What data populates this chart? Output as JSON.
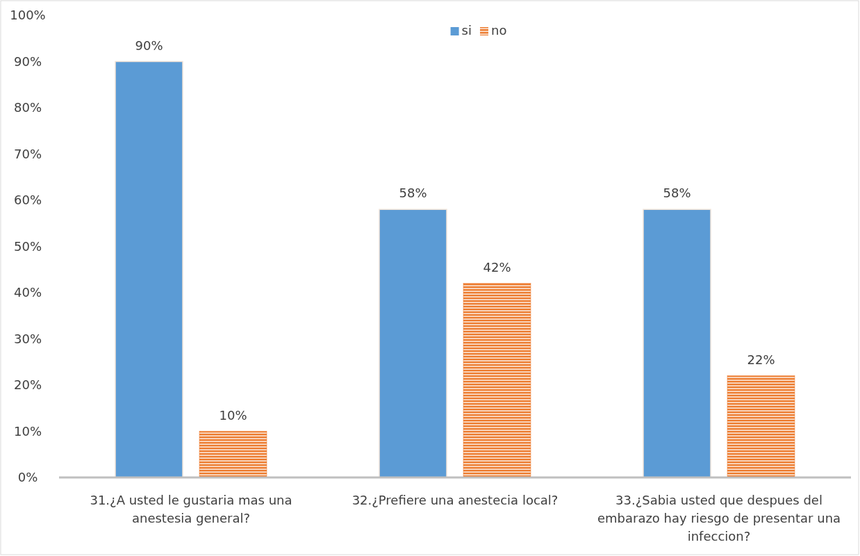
{
  "chart_data": {
    "type": "bar",
    "categories": [
      "31.¿A usted le gustaria mas una anestesia general?",
      "32.¿Prefiere una anestecia local?",
      "33.¿Sabia usted que despues del embarazo hay riesgo de presentar una infeccion?"
    ],
    "series": [
      {
        "name": "si",
        "color": "#5b9bd5",
        "values": [
          90,
          58,
          58
        ],
        "value_labels": [
          "90%",
          "58%",
          "58%"
        ]
      },
      {
        "name": "no",
        "color": "#ed7d31",
        "values": [
          10,
          42,
          22
        ],
        "value_labels": [
          "10%",
          "42%",
          "22%"
        ]
      }
    ],
    "ylim": [
      0,
      100
    ],
    "yticks": [
      {
        "value": 0,
        "label": "0%"
      },
      {
        "value": 10,
        "label": "10%"
      },
      {
        "value": 20,
        "label": "20%"
      },
      {
        "value": 30,
        "label": "30%"
      },
      {
        "value": 40,
        "label": "40%"
      },
      {
        "value": 50,
        "label": "50%"
      },
      {
        "value": 60,
        "label": "60%"
      },
      {
        "value": 70,
        "label": "70%"
      },
      {
        "value": 80,
        "label": "80%"
      },
      {
        "value": 90,
        "label": "90%"
      },
      {
        "value": 100,
        "label": "100%"
      }
    ],
    "legend": "top"
  }
}
